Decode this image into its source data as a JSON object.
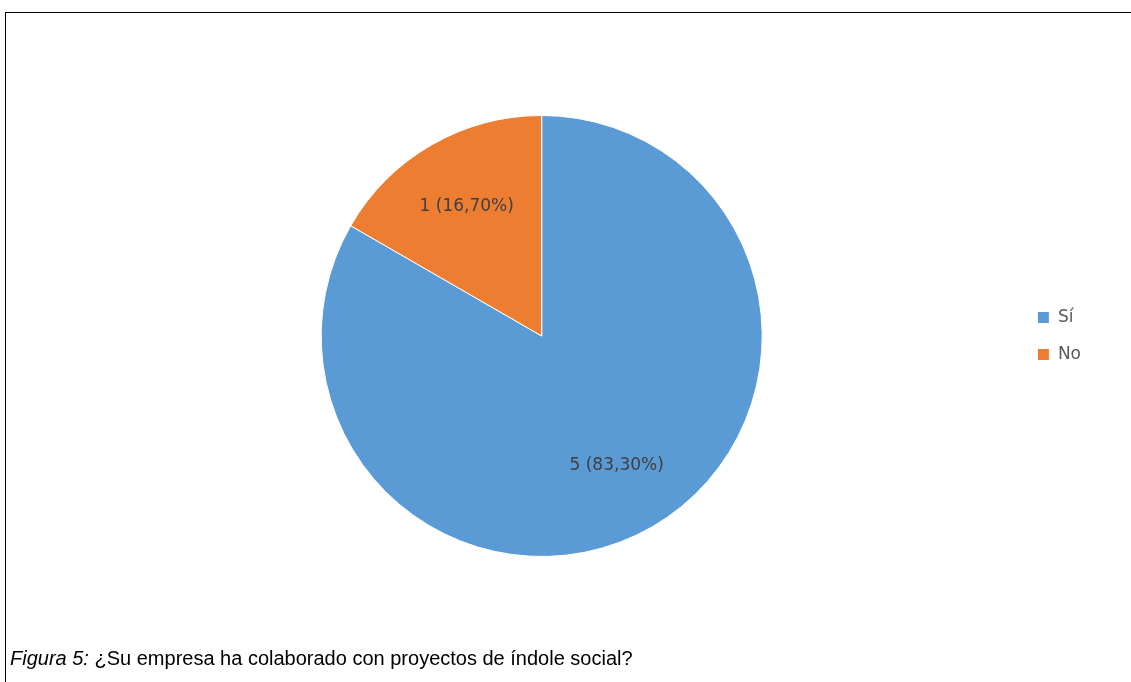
{
  "chart_data": {
    "type": "pie",
    "categories": [
      "Sí",
      "No"
    ],
    "values": [
      5,
      1
    ],
    "colors": [
      "#5b9bd5",
      "#ed7d31"
    ],
    "value_labels": [
      "5 (83,30%)",
      "1 (16,70%)"
    ],
    "legend": "right",
    "annotations": [
      "Figura 5: ¿Su empresa ha colaborado con proyectos de índole social?"
    ]
  }
}
